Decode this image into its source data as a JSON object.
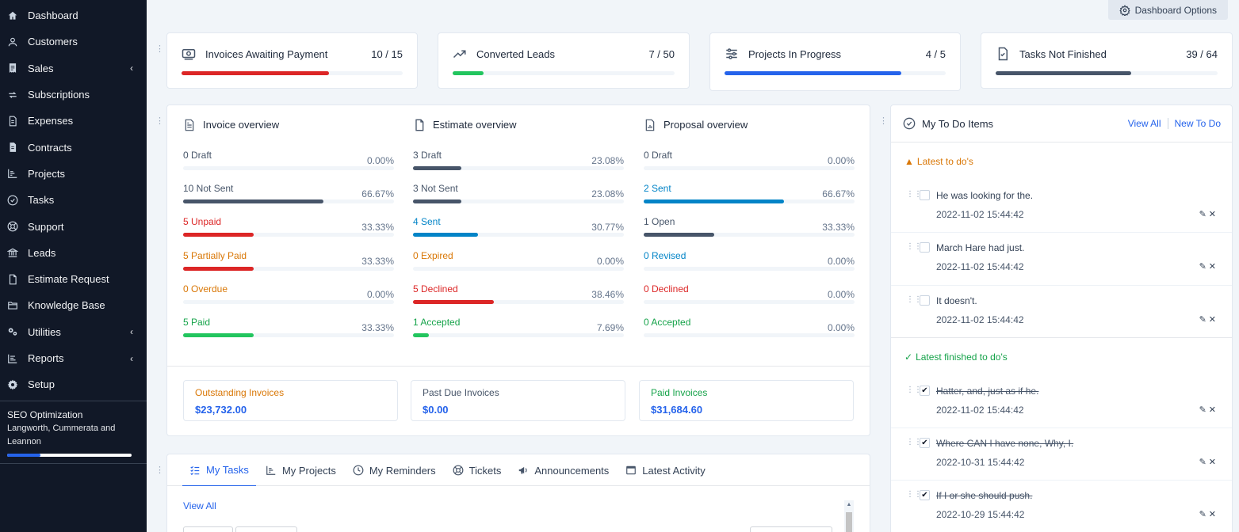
{
  "sidebar": {
    "items": [
      {
        "label": "Dashboard",
        "icon": "home-icon",
        "has_children": false
      },
      {
        "label": "Customers",
        "icon": "user-icon",
        "has_children": false
      },
      {
        "label": "Sales",
        "icon": "receipt-icon",
        "has_children": true
      },
      {
        "label": "Subscriptions",
        "icon": "repeat-icon",
        "has_children": false
      },
      {
        "label": "Expenses",
        "icon": "file-text-icon",
        "has_children": false
      },
      {
        "label": "Contracts",
        "icon": "contract-icon",
        "has_children": false
      },
      {
        "label": "Projects",
        "icon": "chart-icon",
        "has_children": false
      },
      {
        "label": "Tasks",
        "icon": "check-circle-icon",
        "has_children": false
      },
      {
        "label": "Support",
        "icon": "lifebuoy-icon",
        "has_children": false
      },
      {
        "label": "Leads",
        "icon": "bank-icon",
        "has_children": false
      },
      {
        "label": "Estimate Request",
        "icon": "file-icon",
        "has_children": false
      },
      {
        "label": "Knowledge Base",
        "icon": "folder-icon",
        "has_children": false
      },
      {
        "label": "Utilities",
        "icon": "cogs-icon",
        "has_children": true
      },
      {
        "label": "Reports",
        "icon": "list-chart-icon",
        "has_children": true
      },
      {
        "label": "Setup",
        "icon": "gear-icon",
        "has_children": false
      }
    ],
    "chevron": "‹",
    "project": {
      "title": "SEO Optimization",
      "client_line1": "Langworth, Cummerata and",
      "client_line2": "Leannon",
      "progress": 0.27
    }
  },
  "header": {
    "dashboard_options_label": "Dashboard Options"
  },
  "stats": [
    {
      "label": "Invoices Awaiting Payment",
      "value": "10 / 15",
      "progress": 0.667,
      "color": "#dc2626",
      "icon": "money-icon"
    },
    {
      "label": "Converted Leads",
      "value": "7 / 50",
      "progress": 0.14,
      "color": "#22c55e",
      "icon": "trend-up-icon"
    },
    {
      "label": "Projects In Progress",
      "value": "4 / 5",
      "progress": 0.8,
      "color": "#2563eb",
      "icon": "sliders-icon"
    },
    {
      "label": "Tasks Not Finished",
      "value": "39 / 64",
      "progress": 0.609,
      "color": "#475569",
      "icon": "file-check-icon"
    }
  ],
  "overview": {
    "columns": [
      {
        "title": "Invoice overview",
        "icon": "invoice-icon",
        "rows": [
          {
            "label": "0 Draft",
            "pct": "0.00%",
            "progress": 0.0,
            "color": "#475569",
            "text_color": "#475569"
          },
          {
            "label": "10 Not Sent",
            "pct": "66.67%",
            "progress": 0.6667,
            "color": "#475569",
            "text_color": "#475569"
          },
          {
            "label": "5 Unpaid",
            "pct": "33.33%",
            "progress": 0.3333,
            "color": "#dc2626",
            "text_color": "#dc2626"
          },
          {
            "label": "5 Partially Paid",
            "pct": "33.33%",
            "progress": 0.3333,
            "color": "#dc2626",
            "text_color": "#d97706"
          },
          {
            "label": "0 Overdue",
            "pct": "0.00%",
            "progress": 0.0,
            "color": "#d97706",
            "text_color": "#d97706"
          },
          {
            "label": "5 Paid",
            "pct": "33.33%",
            "progress": 0.3333,
            "color": "#22c55e",
            "text_color": "#16a34a"
          }
        ]
      },
      {
        "title": "Estimate overview",
        "icon": "file-icon",
        "rows": [
          {
            "label": "3 Draft",
            "pct": "23.08%",
            "progress": 0.2308,
            "color": "#475569",
            "text_color": "#475569"
          },
          {
            "label": "3 Not Sent",
            "pct": "23.08%",
            "progress": 0.2308,
            "color": "#475569",
            "text_color": "#475569"
          },
          {
            "label": "4 Sent",
            "pct": "30.77%",
            "progress": 0.3077,
            "color": "#0284c7",
            "text_color": "#0284c7"
          },
          {
            "label": "0 Expired",
            "pct": "0.00%",
            "progress": 0.0,
            "color": "#d97706",
            "text_color": "#d97706"
          },
          {
            "label": "5 Declined",
            "pct": "38.46%",
            "progress": 0.3846,
            "color": "#dc2626",
            "text_color": "#dc2626"
          },
          {
            "label": "1 Accepted",
            "pct": "7.69%",
            "progress": 0.0769,
            "color": "#22c55e",
            "text_color": "#16a34a"
          }
        ]
      },
      {
        "title": "Proposal overview",
        "icon": "report-file-icon",
        "rows": [
          {
            "label": "0 Draft",
            "pct": "0.00%",
            "progress": 0.0,
            "color": "#475569",
            "text_color": "#475569"
          },
          {
            "label": "2 Sent",
            "pct": "66.67%",
            "progress": 0.6667,
            "color": "#0284c7",
            "text_color": "#0284c7"
          },
          {
            "label": "1 Open",
            "pct": "33.33%",
            "progress": 0.3333,
            "color": "#475569",
            "text_color": "#475569"
          },
          {
            "label": "0 Revised",
            "pct": "0.00%",
            "progress": 0.0,
            "color": "#0284c7",
            "text_color": "#0284c7"
          },
          {
            "label": "0 Declined",
            "pct": "0.00%",
            "progress": 0.0,
            "color": "#dc2626",
            "text_color": "#dc2626"
          },
          {
            "label": "0 Accepted",
            "pct": "0.00%",
            "progress": 0.0,
            "color": "#22c55e",
            "text_color": "#16a34a"
          }
        ]
      }
    ],
    "totals": [
      {
        "label": "Outstanding Invoices",
        "value": "$23,732.00",
        "label_color": "#d97706"
      },
      {
        "label": "Past Due Invoices",
        "value": "$0.00",
        "label_color": "#475569"
      },
      {
        "label": "Paid Invoices",
        "value": "$31,684.60",
        "label_color": "#16a34a"
      }
    ]
  },
  "tabs": {
    "items": [
      {
        "label": "My Tasks",
        "icon": "tasks-list-icon",
        "active": true
      },
      {
        "label": "My Projects",
        "icon": "chart-icon",
        "active": false
      },
      {
        "label": "My Reminders",
        "icon": "clock-icon",
        "active": false
      },
      {
        "label": "Tickets",
        "icon": "lifebuoy-icon",
        "active": false
      },
      {
        "label": "Announcements",
        "icon": "megaphone-icon",
        "active": false
      },
      {
        "label": "Latest Activity",
        "icon": "window-icon",
        "active": false
      }
    ],
    "view_all": "View All"
  },
  "todo": {
    "title": "My To Do Items",
    "view_all": "View All",
    "new_todo": "New To Do",
    "latest_label": "Latest to do's",
    "latest_color": "#d97706",
    "finished_label": "Latest finished to do's",
    "finished_color": "#16a34a",
    "latest": [
      {
        "text": "He was looking for the.",
        "date": "2022-11-02 15:44:42"
      },
      {
        "text": "March Hare had just.",
        "date": "2022-11-02 15:44:42"
      },
      {
        "text": "It doesn't.",
        "date": "2022-11-02 15:44:42"
      }
    ],
    "finished": [
      {
        "text": "Hatter, and, just as if he.",
        "date": "2022-11-02 15:44:42"
      },
      {
        "text": "Where CAN I have none, Why, I.",
        "date": "2022-10-31 15:44:42"
      },
      {
        "text": "If I or she should push.",
        "date": "2022-10-29 15:44:42"
      }
    ]
  }
}
